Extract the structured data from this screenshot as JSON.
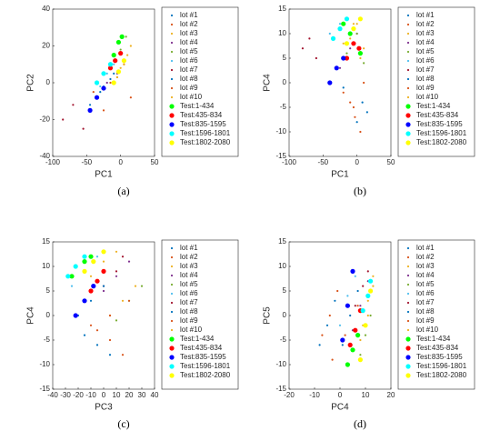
{
  "chart_data": [
    {
      "type": "scatter",
      "caption": "(a)",
      "xlabel": "PC1",
      "ylabel": "PC2",
      "xlim": [
        -100,
        50
      ],
      "ylim": [
        -40,
        40
      ],
      "xticks": [
        -100,
        -50,
        0,
        50
      ],
      "yticks": [
        -40,
        -20,
        0,
        20,
        40
      ],
      "series": [
        {
          "name": "lot #1",
          "color": "#0072BD",
          "marker": "point",
          "x": [
            -35,
            -25,
            -10
          ],
          "y": [
            -8,
            -2,
            5
          ]
        },
        {
          "name": "lot #2",
          "color": "#D95319",
          "marker": "point",
          "x": [
            -40,
            -15,
            5
          ],
          "y": [
            -5,
            0,
            10
          ]
        },
        {
          "name": "lot #3",
          "color": "#EDB120",
          "marker": "point",
          "x": [
            -10,
            0,
            10
          ],
          "y": [
            0,
            8,
            15
          ]
        },
        {
          "name": "lot #4",
          "color": "#7E2F8E",
          "marker": "point",
          "x": [
            -20,
            -5,
            5
          ],
          "y": [
            0,
            5,
            12
          ]
        },
        {
          "name": "lot #5",
          "color": "#77AC30",
          "marker": "point",
          "x": [
            -15,
            0,
            8
          ],
          "y": [
            10,
            18,
            25
          ]
        },
        {
          "name": "lot #6",
          "color": "#4DBEEE",
          "marker": "point",
          "x": [
            -30,
            -20,
            -10
          ],
          "y": [
            -2,
            5,
            10
          ]
        },
        {
          "name": "lot #7",
          "color": "#A2142F",
          "marker": "point",
          "x": [
            -85,
            -70,
            -55
          ],
          "y": [
            -20,
            -12,
            -25
          ]
        },
        {
          "name": "lot #8",
          "color": "#0072BD",
          "marker": "point",
          "x": [
            -45,
            -30,
            -15
          ],
          "y": [
            -12,
            -5,
            2
          ]
        },
        {
          "name": "lot #9",
          "color": "#D95319",
          "marker": "point",
          "x": [
            -25,
            -5,
            15
          ],
          "y": [
            -15,
            3,
            -8
          ]
        },
        {
          "name": "lot #10",
          "color": "#EDB120",
          "marker": "point",
          "x": [
            -5,
            5,
            15
          ],
          "y": [
            3,
            10,
            20
          ]
        },
        {
          "name": "Test:1-434",
          "color": "#00FF00",
          "marker": "filled",
          "x": [
            -10,
            -3,
            2
          ],
          "y": [
            15,
            22,
            25
          ]
        },
        {
          "name": "Test:435-834",
          "color": "#FF0000",
          "marker": "filled",
          "x": [
            -15,
            -8,
            0
          ],
          "y": [
            8,
            12,
            16
          ]
        },
        {
          "name": "Test:835-1595",
          "color": "#0000FF",
          "marker": "filled",
          "x": [
            -45,
            -35,
            -25
          ],
          "y": [
            -15,
            -8,
            -3
          ]
        },
        {
          "name": "Test:1596-1801",
          "color": "#00FFFF",
          "marker": "filled",
          "x": [
            -35,
            -25,
            -15
          ],
          "y": [
            0,
            5,
            10
          ]
        },
        {
          "name": "Test:1802-2080",
          "color": "#FFFF00",
          "marker": "filled",
          "x": [
            -10,
            -3,
            5
          ],
          "y": [
            0,
            6,
            12
          ]
        }
      ]
    },
    {
      "type": "scatter",
      "caption": "(b)",
      "xlabel": "PC1",
      "ylabel": "PC4",
      "xlim": [
        -100,
        50
      ],
      "ylim": [
        -15,
        15
      ],
      "xticks": [
        -100,
        -50,
        0,
        50
      ],
      "yticks": [
        -15,
        -10,
        -5,
        0,
        5,
        10,
        15
      ],
      "series": [
        {
          "name": "lot #1",
          "color": "#0072BD",
          "marker": "point",
          "x": [
            0,
            8,
            15
          ],
          "y": [
            -8,
            -4,
            -6
          ]
        },
        {
          "name": "lot #2",
          "color": "#D95319",
          "marker": "point",
          "x": [
            -10,
            -3,
            5
          ],
          "y": [
            -4,
            -7,
            -10
          ]
        },
        {
          "name": "lot #3",
          "color": "#EDB120",
          "marker": "point",
          "x": [
            -20,
            -5,
            5
          ],
          "y": [
            8,
            12,
            5
          ]
        },
        {
          "name": "lot #4",
          "color": "#7E2F8E",
          "marker": "point",
          "x": [
            -25,
            -10,
            0
          ],
          "y": [
            3,
            7,
            10
          ]
        },
        {
          "name": "lot #5",
          "color": "#77AC30",
          "marker": "point",
          "x": [
            -15,
            0,
            10
          ],
          "y": [
            6,
            10,
            4
          ]
        },
        {
          "name": "lot #6",
          "color": "#4DBEEE",
          "marker": "point",
          "x": [
            -40,
            -25,
            -15
          ],
          "y": [
            10,
            12,
            8
          ]
        },
        {
          "name": "lot #7",
          "color": "#A2142F",
          "marker": "point",
          "x": [
            -80,
            -70,
            -60
          ],
          "y": [
            7,
            9,
            5
          ]
        },
        {
          "name": "lot #8",
          "color": "#0072BD",
          "marker": "point",
          "x": [
            -40,
            -30,
            -20
          ],
          "y": [
            0,
            3,
            -1
          ]
        },
        {
          "name": "lot #9",
          "color": "#D95319",
          "marker": "point",
          "x": [
            -20,
            -5,
            10
          ],
          "y": [
            -2,
            -5,
            0
          ]
        },
        {
          "name": "lot #10",
          "color": "#EDB120",
          "marker": "point",
          "x": [
            -10,
            0,
            10
          ],
          "y": [
            9,
            12,
            7
          ]
        },
        {
          "name": "Test:1-434",
          "color": "#00FF00",
          "marker": "filled",
          "x": [
            -20,
            -10,
            5
          ],
          "y": [
            12,
            10,
            6
          ]
        },
        {
          "name": "Test:435-834",
          "color": "#FF0000",
          "marker": "filled",
          "x": [
            -15,
            -5,
            3
          ],
          "y": [
            5,
            8,
            7
          ]
        },
        {
          "name": "Test:835-1595",
          "color": "#0000FF",
          "marker": "filled",
          "x": [
            -40,
            -30,
            -20
          ],
          "y": [
            0,
            3,
            5
          ]
        },
        {
          "name": "Test:1596-1801",
          "color": "#00FFFF",
          "marker": "filled",
          "x": [
            -35,
            -25,
            -15
          ],
          "y": [
            9,
            11,
            13
          ]
        },
        {
          "name": "Test:1802-2080",
          "color": "#FFFF00",
          "marker": "filled",
          "x": [
            -15,
            -5,
            5
          ],
          "y": [
            8,
            11,
            13
          ]
        }
      ]
    },
    {
      "type": "scatter",
      "caption": "(c)",
      "xlabel": "PC3",
      "ylabel": "PC4",
      "xlim": [
        -40,
        40
      ],
      "ylim": [
        -15,
        15
      ],
      "xticks": [
        -40,
        -30,
        -20,
        -10,
        0,
        10,
        20,
        30,
        40
      ],
      "yticks": [
        -15,
        -10,
        -5,
        0,
        5,
        10,
        15
      ],
      "series": [
        {
          "name": "lot #1",
          "color": "#0072BD",
          "marker": "point",
          "x": [
            -15,
            -5,
            5
          ],
          "y": [
            -4,
            -6,
            -8
          ]
        },
        {
          "name": "lot #2",
          "color": "#D95319",
          "marker": "point",
          "x": [
            -5,
            5,
            15
          ],
          "y": [
            -3,
            -5,
            -8
          ]
        },
        {
          "name": "lot #3",
          "color": "#EDB120",
          "marker": "point",
          "x": [
            5,
            15,
            25
          ],
          "y": [
            0,
            3,
            6
          ]
        },
        {
          "name": "lot #4",
          "color": "#7E2F8E",
          "marker": "point",
          "x": [
            0,
            10,
            20
          ],
          "y": [
            5,
            8,
            11
          ]
        },
        {
          "name": "lot #5",
          "color": "#77AC30",
          "marker": "point",
          "x": [
            10,
            20,
            30
          ],
          "y": [
            -1,
            3,
            6
          ]
        },
        {
          "name": "lot #6",
          "color": "#4DBEEE",
          "marker": "point",
          "x": [
            -25,
            -15,
            -5
          ],
          "y": [
            6,
            9,
            12
          ]
        },
        {
          "name": "lot #7",
          "color": "#A2142F",
          "marker": "point",
          "x": [
            0,
            10,
            15
          ],
          "y": [
            6,
            9,
            12
          ]
        },
        {
          "name": "lot #8",
          "color": "#0072BD",
          "marker": "point",
          "x": [
            -20,
            -10,
            0
          ],
          "y": [
            0,
            3,
            6
          ]
        },
        {
          "name": "lot #9",
          "color": "#D95319",
          "marker": "point",
          "x": [
            -10,
            5,
            20
          ],
          "y": [
            -2,
            0,
            3
          ]
        },
        {
          "name": "lot #10",
          "color": "#EDB120",
          "marker": "point",
          "x": [
            -10,
            0,
            10
          ],
          "y": [
            8,
            11,
            13
          ]
        },
        {
          "name": "Test:1-434",
          "color": "#00FF00",
          "marker": "filled",
          "x": [
            -25,
            -15,
            -10
          ],
          "y": [
            8,
            11,
            12
          ]
        },
        {
          "name": "Test:435-834",
          "color": "#FF0000",
          "marker": "filled",
          "x": [
            -10,
            -5,
            0
          ],
          "y": [
            5,
            7,
            9
          ]
        },
        {
          "name": "Test:835-1595",
          "color": "#0000FF",
          "marker": "filled",
          "x": [
            -22,
            -15,
            -8
          ],
          "y": [
            0,
            3,
            6
          ]
        },
        {
          "name": "Test:1596-1801",
          "color": "#00FFFF",
          "marker": "filled",
          "x": [
            -28,
            -22,
            -15
          ],
          "y": [
            8,
            10,
            12
          ]
        },
        {
          "name": "Test:1802-2080",
          "color": "#FFFF00",
          "marker": "filled",
          "x": [
            -15,
            -8,
            0
          ],
          "y": [
            9,
            11,
            13
          ]
        }
      ]
    },
    {
      "type": "scatter",
      "caption": "(d)",
      "xlabel": "PC4",
      "ylabel": "PC5",
      "xlim": [
        -20,
        20
      ],
      "ylim": [
        -15,
        15
      ],
      "xticks": [
        -20,
        -10,
        0,
        10,
        20
      ],
      "yticks": [
        -15,
        -10,
        -5,
        0,
        5,
        10,
        15
      ],
      "series": [
        {
          "name": "lot #1",
          "color": "#0072BD",
          "marker": "point",
          "x": [
            -8,
            -5,
            -2
          ],
          "y": [
            -6,
            -2,
            3
          ]
        },
        {
          "name": "lot #2",
          "color": "#D95319",
          "marker": "point",
          "x": [
            -7,
            -4,
            -1
          ],
          "y": [
            -4,
            0,
            5
          ]
        },
        {
          "name": "lot #3",
          "color": "#EDB120",
          "marker": "point",
          "x": [
            8,
            11,
            13
          ],
          "y": [
            -5,
            0,
            6
          ]
        },
        {
          "name": "lot #4",
          "color": "#7E2F8E",
          "marker": "point",
          "x": [
            5,
            8,
            11
          ],
          "y": [
            -3,
            2,
            7
          ]
        },
        {
          "name": "lot #5",
          "color": "#77AC30",
          "marker": "point",
          "x": [
            8,
            10,
            12
          ],
          "y": [
            -8,
            -4,
            0
          ]
        },
        {
          "name": "lot #6",
          "color": "#4DBEEE",
          "marker": "point",
          "x": [
            0,
            3,
            6
          ],
          "y": [
            -2,
            4,
            8
          ]
        },
        {
          "name": "lot #7",
          "color": "#A2142F",
          "marker": "point",
          "x": [
            6,
            9,
            11
          ],
          "y": [
            2,
            6,
            9
          ]
        },
        {
          "name": "lot #8",
          "color": "#0072BD",
          "marker": "point",
          "x": [
            1,
            4,
            7
          ],
          "y": [
            -6,
            0,
            5
          ]
        },
        {
          "name": "lot #9",
          "color": "#D95319",
          "marker": "point",
          "x": [
            -3,
            2,
            7
          ],
          "y": [
            -9,
            -4,
            2
          ]
        },
        {
          "name": "lot #10",
          "color": "#EDB120",
          "marker": "point",
          "x": [
            9,
            11,
            13
          ],
          "y": [
            -2,
            3,
            8
          ]
        },
        {
          "name": "Test:1-434",
          "color": "#00FF00",
          "marker": "filled",
          "x": [
            3,
            5,
            7
          ],
          "y": [
            -10,
            -7,
            -4
          ]
        },
        {
          "name": "Test:435-834",
          "color": "#FF0000",
          "marker": "filled",
          "x": [
            4,
            6,
            8
          ],
          "y": [
            -6,
            -3,
            1
          ]
        },
        {
          "name": "Test:835-1595",
          "color": "#0000FF",
          "marker": "filled",
          "x": [
            1,
            3,
            5
          ],
          "y": [
            -5,
            2,
            9
          ]
        },
        {
          "name": "Test:1596-1801",
          "color": "#00FFFF",
          "marker": "filled",
          "x": [
            9,
            11,
            12
          ],
          "y": [
            1,
            4,
            7
          ]
        },
        {
          "name": "Test:1802-2080",
          "color": "#FFFF00",
          "marker": "filled",
          "x": [
            8,
            10,
            12
          ],
          "y": [
            -9,
            -2,
            5
          ]
        }
      ]
    }
  ]
}
